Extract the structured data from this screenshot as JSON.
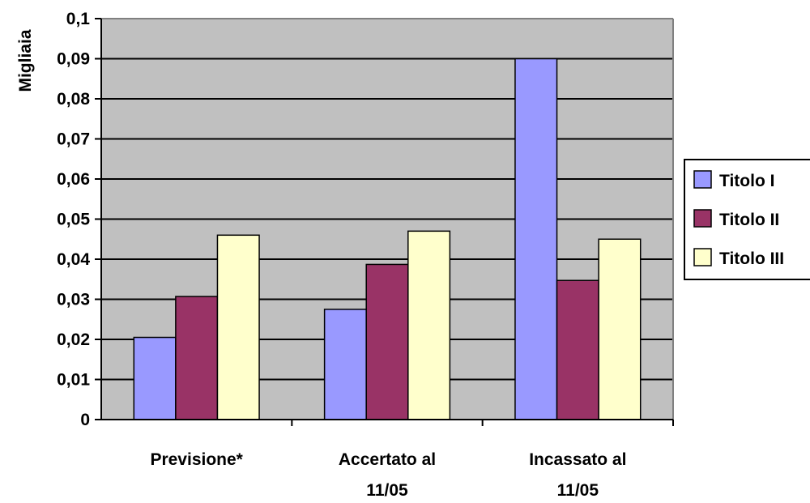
{
  "chart_data": {
    "type": "bar",
    "title": "",
    "xlabel": "",
    "ylabel": "Migliaia",
    "ylim": [
      0,
      0.1
    ],
    "yticks": [
      "0",
      "0,01",
      "0,02",
      "0,03",
      "0,04",
      "0,05",
      "0,06",
      "0,07",
      "0,08",
      "0,09",
      "0,1"
    ],
    "categories": [
      [
        "Previsione*"
      ],
      [
        "Accertato al",
        "11/05"
      ],
      [
        "Incassato al",
        "11/05"
      ]
    ],
    "series": [
      {
        "name": "Titolo I",
        "color": "#9999ff",
        "values": [
          0.0205,
          0.0275,
          0.09
        ]
      },
      {
        "name": "Titolo II",
        "color": "#993366",
        "values": [
          0.0307,
          0.0387,
          0.0347
        ]
      },
      {
        "name": "Titolo III",
        "color": "#ffffcc",
        "values": [
          0.046,
          0.047,
          0.045
        ]
      }
    ],
    "plot_background": "#c0c0c0",
    "grid": true,
    "legend_position": "right"
  }
}
